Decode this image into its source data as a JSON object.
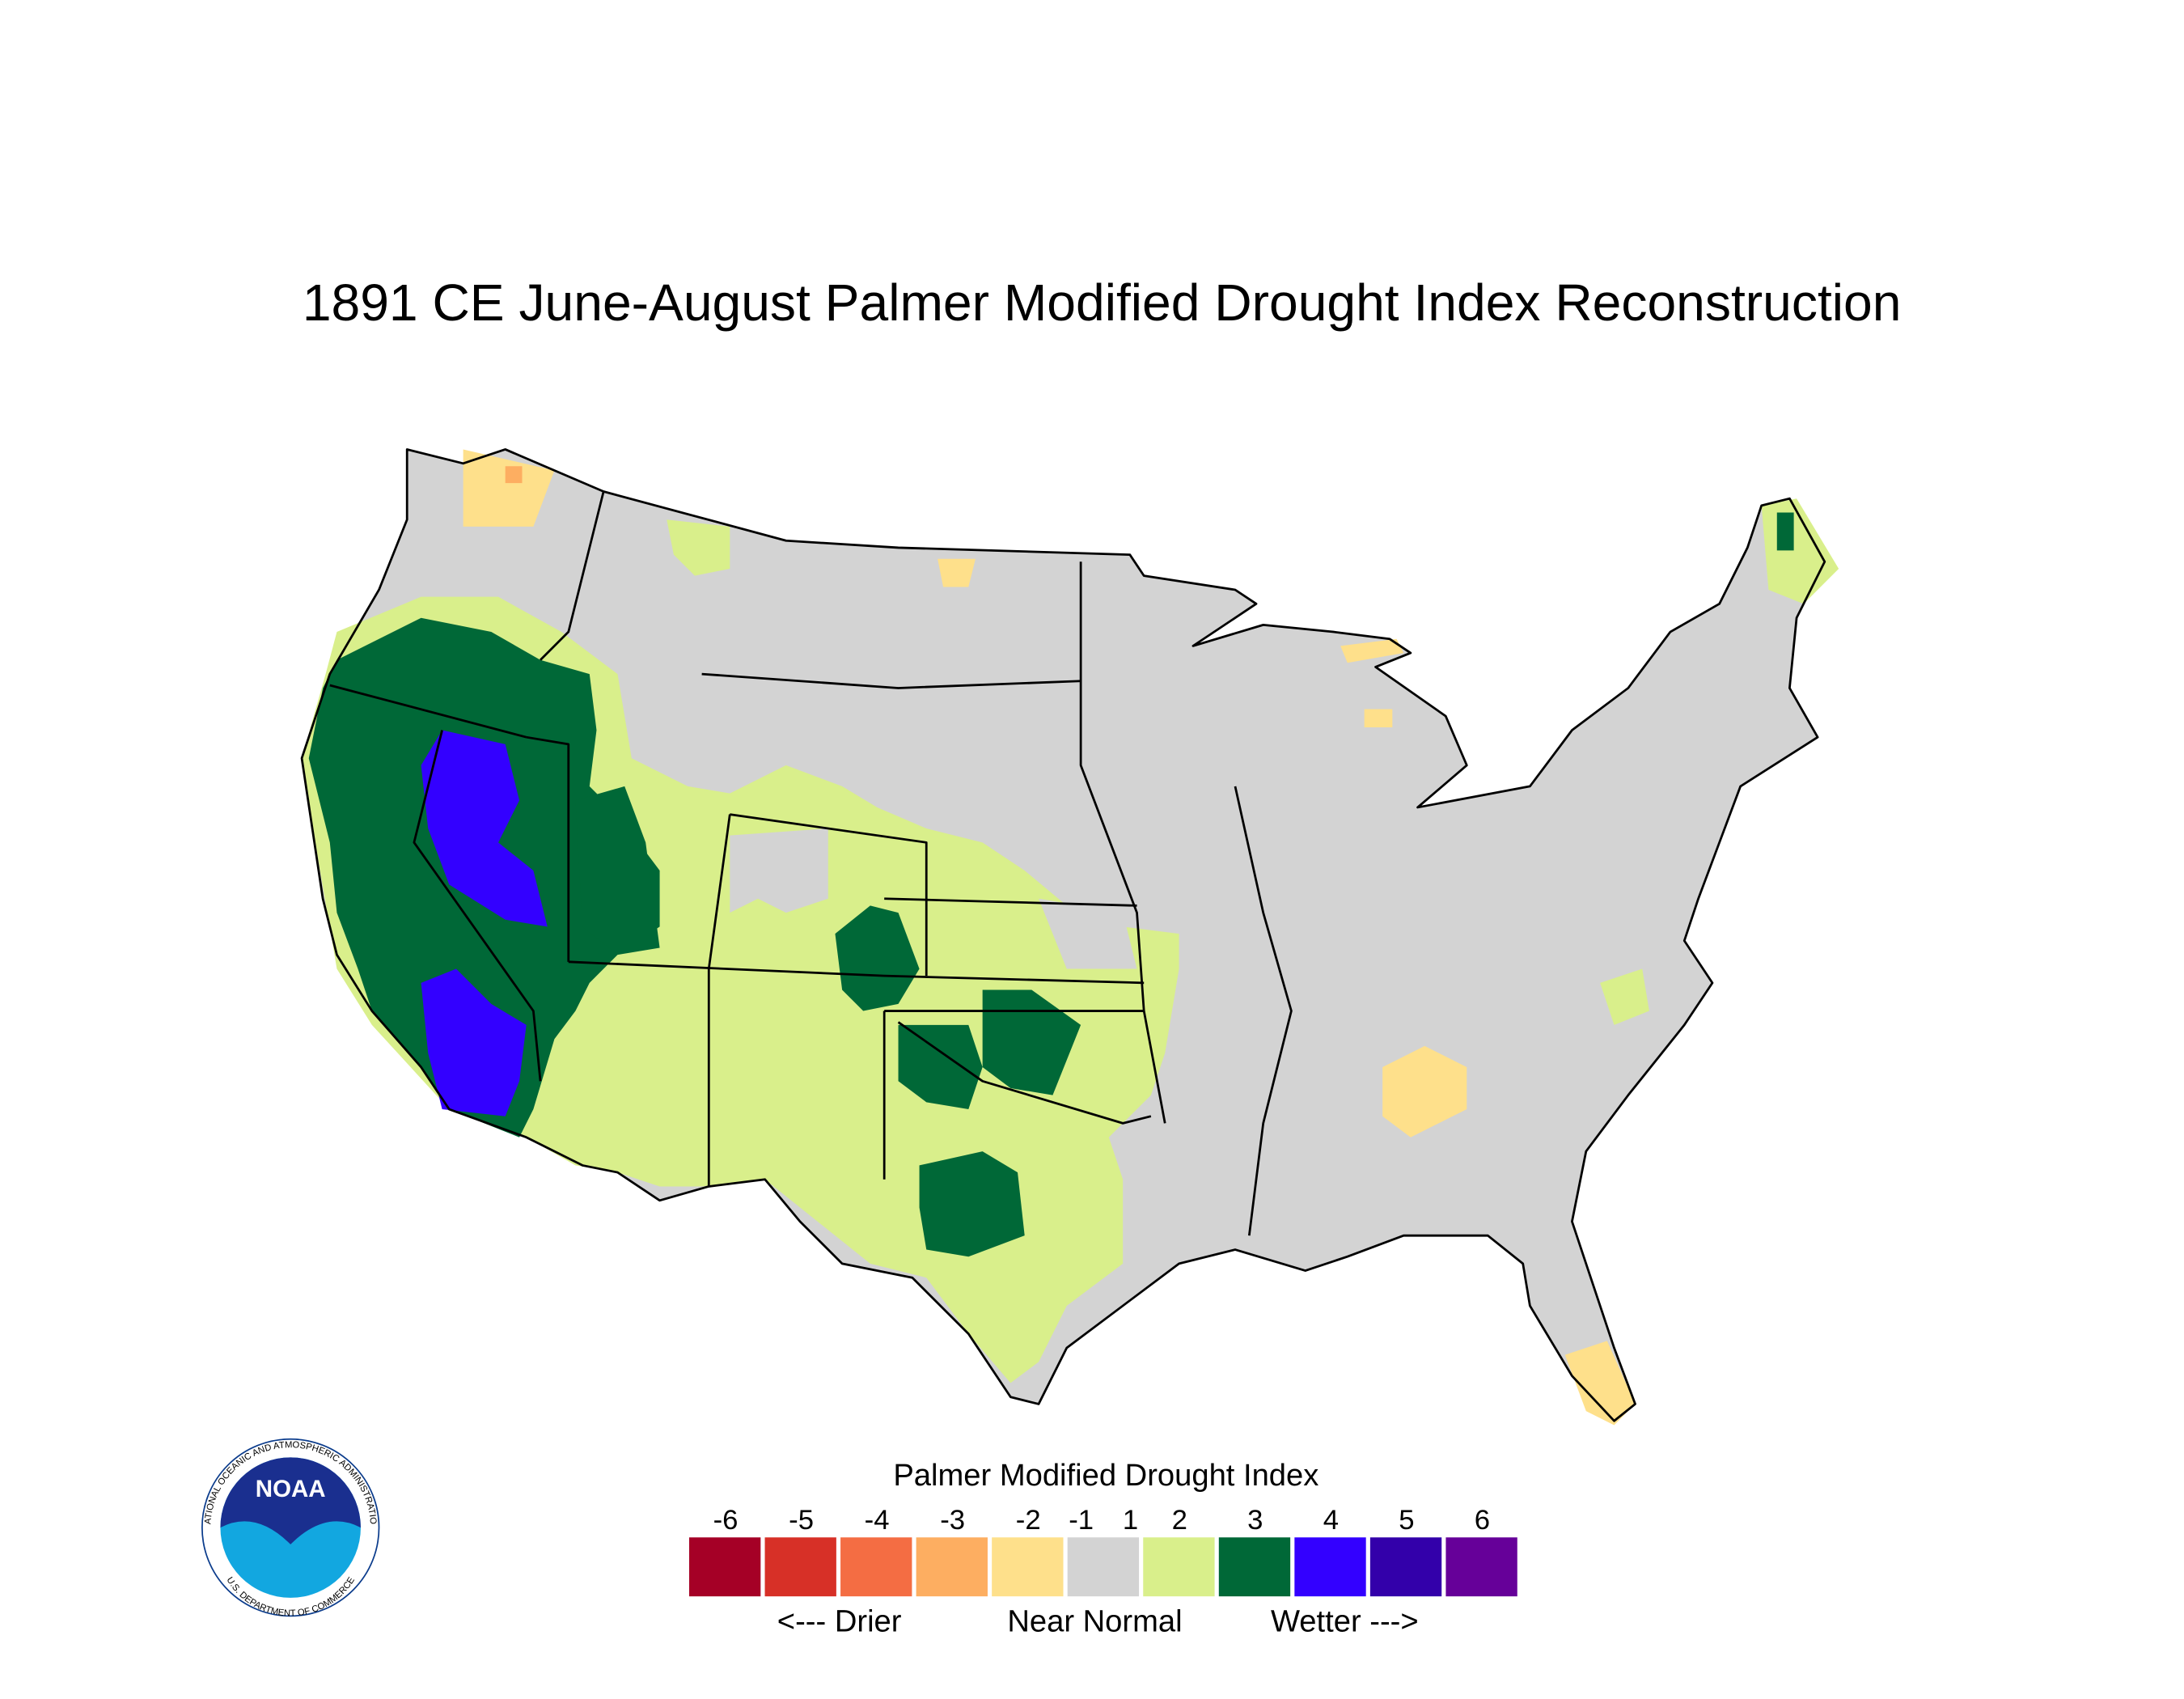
{
  "title": "1891 CE  June-August  Palmer Modified Drought Index Reconstruction",
  "legend": {
    "title": "Palmer Modified Drought Index",
    "ticks": [
      -6,
      -5,
      -4,
      -3,
      -2,
      -1,
      1,
      2,
      3,
      4,
      5,
      6
    ],
    "colors": [
      "#a50026",
      "#d73027",
      "#f46d43",
      "#fdae61",
      "#fee08b",
      "#d3d3d3",
      "#d9ef8b",
      "#006837",
      "#3300ff",
      "#3300aa",
      "#660099"
    ],
    "notes": [
      "<--- Drier",
      "Near Normal",
      "Wetter --->"
    ]
  },
  "logo": {
    "name": "NOAA",
    "ring_top": "NATIONAL OCEANIC AND ATMOSPHERIC ADMINISTRATION",
    "ring_bottom": "U.S. DEPARTMENT OF COMMERCE"
  }
}
